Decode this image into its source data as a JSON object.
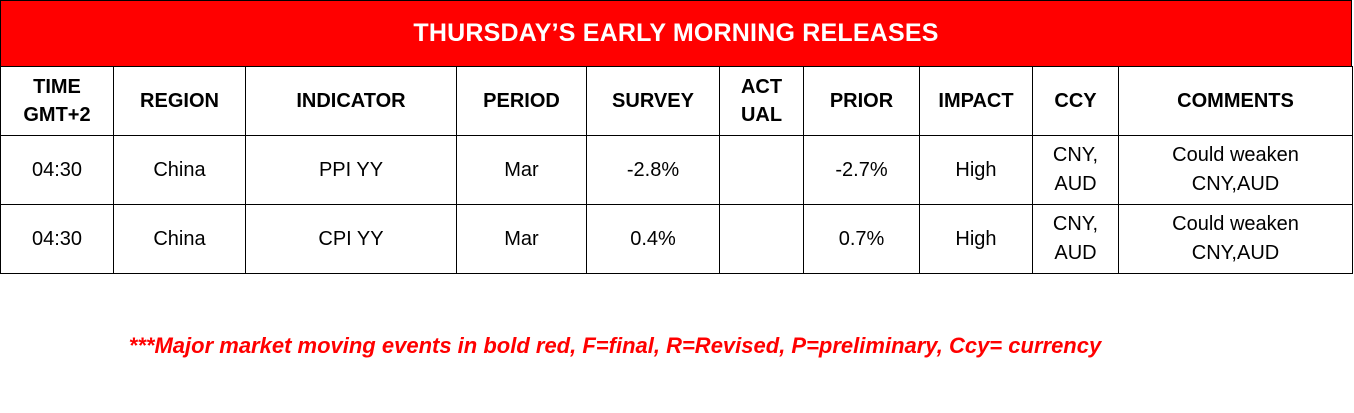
{
  "banner": {
    "title": "THURSDAY’S EARLY MORNING RELEASES",
    "background_color": "#ff0000",
    "text_color": "#ffffff"
  },
  "table": {
    "headers": [
      {
        "line1": "TIME",
        "line2": "GMT+2"
      },
      {
        "line1": "REGION",
        "line2": ""
      },
      {
        "line1": "INDICATOR",
        "line2": ""
      },
      {
        "line1": "PERIOD",
        "line2": ""
      },
      {
        "line1": "SURVEY",
        "line2": ""
      },
      {
        "line1": "ACT",
        "line2": "UAL"
      },
      {
        "line1": "PRIOR",
        "line2": ""
      },
      {
        "line1": "IMPACT",
        "line2": ""
      },
      {
        "line1": "CCY",
        "line2": ""
      },
      {
        "line1": "COMMENTS",
        "line2": ""
      }
    ],
    "rows": [
      {
        "time": "04:30",
        "region": "China",
        "indicator": "PPI YY",
        "period": "Mar",
        "survey": "-2.8%",
        "actual": "",
        "prior": "-2.7%",
        "impact": "High",
        "ccy_line1": "CNY,",
        "ccy_line2": "AUD",
        "comments_line1": "Could weaken",
        "comments_line2": "CNY,AUD"
      },
      {
        "time": "04:30",
        "region": "China",
        "indicator": "CPI YY",
        "period": "Mar",
        "survey": "0.4%",
        "actual": "",
        "prior": "0.7%",
        "impact": "High",
        "ccy_line1": "CNY,",
        "ccy_line2": "AUD",
        "comments_line1": "Could weaken",
        "comments_line2": "CNY,AUD"
      }
    ]
  },
  "footnote": {
    "text": "***Major market moving events in bold red, F=final, R=Revised, P=preliminary, Ccy= currency",
    "color": "#ff0000"
  }
}
